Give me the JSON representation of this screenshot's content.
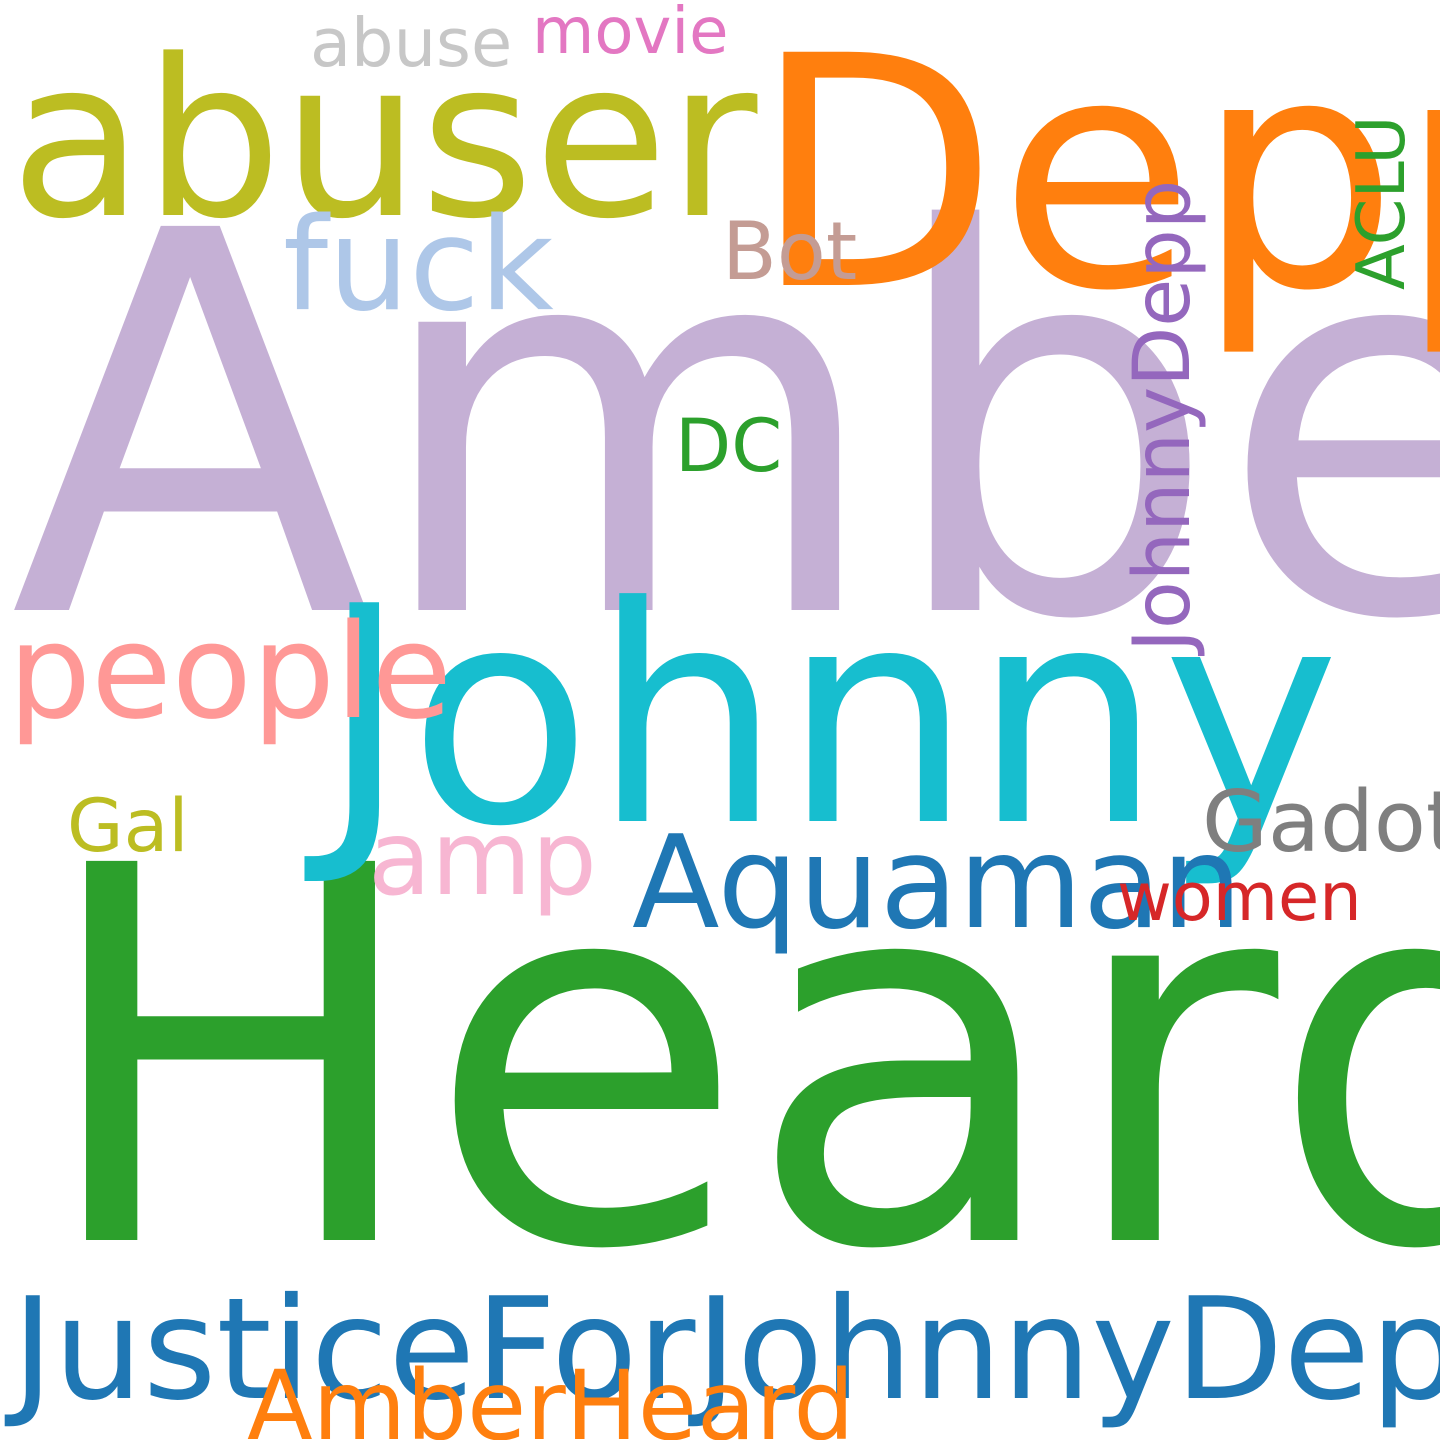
{
  "word_cloud": {
    "words": [
      {
        "text": "Amber",
        "color": "#c5b0d5"
      },
      {
        "text": "Heard",
        "color": "#2ca02c"
      },
      {
        "text": "Depp",
        "color": "#ff7f0e"
      },
      {
        "text": "Johnny",
        "color": "#17becf"
      },
      {
        "text": "abuser",
        "color": "#bcbd22"
      },
      {
        "text": "JusticeForJohnnyDepp",
        "color": "#1f77b4"
      },
      {
        "text": "Aquaman",
        "color": "#1f77b4"
      },
      {
        "text": "people",
        "color": "#ff9896"
      },
      {
        "text": "fuck",
        "color": "#aec7e8"
      },
      {
        "text": "AmberHeard",
        "color": "#ff7f0e"
      },
      {
        "text": "JohnnyDepp",
        "color": "#9467bd"
      },
      {
        "text": "amp",
        "color": "#f7b6d2"
      },
      {
        "text": "Gadot",
        "color": "#7f7f7f"
      },
      {
        "text": "Bot",
        "color": "#c49c94"
      },
      {
        "text": "abuse",
        "color": "#c7c7c7"
      },
      {
        "text": "movie",
        "color": "#e377c2"
      },
      {
        "text": "women",
        "color": "#d62728"
      },
      {
        "text": "DC",
        "color": "#2ca02c"
      },
      {
        "text": "Gal",
        "color": "#bcbd22"
      },
      {
        "text": "ACLU",
        "color": "#2ca02c"
      }
    ]
  }
}
